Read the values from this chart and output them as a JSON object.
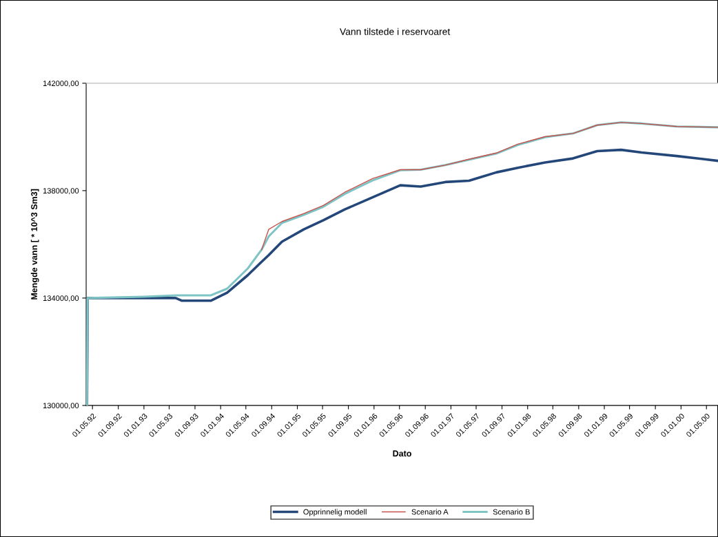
{
  "chart_data": {
    "type": "line",
    "title": "Vann tilstede i reservoaret",
    "xlabel": "Dato",
    "ylabel": "Mengde vann [ * 10^3 Sm3]",
    "x": [
      "1992-04-05",
      "1992-04-08",
      "1993-01-01",
      "1993-06-01",
      "1993-07-01",
      "1993-11-15",
      "1994-02-01",
      "1994-05-10",
      "1994-07-15",
      "1994-08-18",
      "1994-10-20",
      "1995-02-01",
      "1995-05-05",
      "1995-08-15",
      "1995-12-25",
      "1996-05-05",
      "1996-08-10",
      "1996-12-05",
      "1997-03-28",
      "1997-08-05",
      "1997-11-15",
      "1998-03-25",
      "1998-08-05",
      "1998-11-28",
      "1999-03-22",
      "1999-06-28",
      "1999-12-12",
      "2000-06-25"
    ],
    "series": [
      {
        "name": "Opprinnelig modell",
        "color": "#24477a",
        "values": [
          130000,
          134000,
          134000,
          134000,
          133900,
          133900,
          134200,
          134850,
          135350,
          135600,
          136100,
          136560,
          136900,
          137300,
          137750,
          138200,
          138150,
          138320,
          138370,
          138680,
          138850,
          139050,
          139200,
          139470,
          139520,
          139420,
          139290,
          139110
        ]
      },
      {
        "name": "Scenario A",
        "color": "#c8504a",
        "values": [
          null,
          null,
          null,
          null,
          null,
          null,
          null,
          null,
          135800,
          136560,
          136850,
          137150,
          137450,
          137940,
          138450,
          138780,
          138780,
          138950,
          139170,
          139400,
          139730,
          140010,
          140130,
          140440,
          140540,
          140500,
          140390,
          140360
        ]
      },
      {
        "name": "Scenario B",
        "color": "#7fc4c4",
        "values": [
          130000,
          134000,
          134050,
          134100,
          134100,
          134100,
          134350,
          135100,
          135800,
          136300,
          136800,
          137100,
          137400,
          137880,
          138380,
          138760,
          138780,
          138950,
          139150,
          139380,
          139700,
          139990,
          140130,
          140440,
          140540,
          140500,
          140390,
          140360
        ]
      }
    ],
    "xlim": [
      "1992-04-01",
      "2000-06-25"
    ],
    "xticks": [
      {
        "value": "1992-05-01",
        "label": "01.05.92"
      },
      {
        "value": "1992-09-01",
        "label": "01.09.92"
      },
      {
        "value": "1993-01-01",
        "label": "01.01.93"
      },
      {
        "value": "1993-05-01",
        "label": "01.05.93"
      },
      {
        "value": "1993-09-01",
        "label": "01.09.93"
      },
      {
        "value": "1994-01-01",
        "label": "01.01.94"
      },
      {
        "value": "1994-05-01",
        "label": "01.05.94"
      },
      {
        "value": "1994-09-01",
        "label": "01.09.94"
      },
      {
        "value": "1995-01-01",
        "label": "01.01.95"
      },
      {
        "value": "1995-05-01",
        "label": "01.05.95"
      },
      {
        "value": "1995-09-01",
        "label": "01.09.95"
      },
      {
        "value": "1996-01-01",
        "label": "01.01.96"
      },
      {
        "value": "1996-05-01",
        "label": "01.05.96"
      },
      {
        "value": "1996-09-01",
        "label": "01.09.96"
      },
      {
        "value": "1997-01-01",
        "label": "01.01.97"
      },
      {
        "value": "1997-05-01",
        "label": "01.05.97"
      },
      {
        "value": "1997-09-01",
        "label": "01.09.97"
      },
      {
        "value": "1998-01-01",
        "label": "01.01.98"
      },
      {
        "value": "1998-05-01",
        "label": "01.05.98"
      },
      {
        "value": "1998-09-01",
        "label": "01.09.98"
      },
      {
        "value": "1999-01-01",
        "label": "01.01.99"
      },
      {
        "value": "1999-05-01",
        "label": "01.05.99"
      },
      {
        "value": "1999-09-01",
        "label": "01.09.99"
      },
      {
        "value": "2000-01-01",
        "label": "01.01.00"
      },
      {
        "value": "2000-05-01",
        "label": "01.05.00"
      }
    ],
    "ylim": [
      130000,
      142000
    ],
    "yticks": [
      {
        "value": 130000,
        "label": "130000,00"
      },
      {
        "value": 134000,
        "label": "134000,00"
      },
      {
        "value": 138000,
        "label": "138000,00"
      },
      {
        "value": 142000,
        "label": "142000,00"
      }
    ],
    "legend": "bottom",
    "marker": "none",
    "line_style": "solid"
  }
}
